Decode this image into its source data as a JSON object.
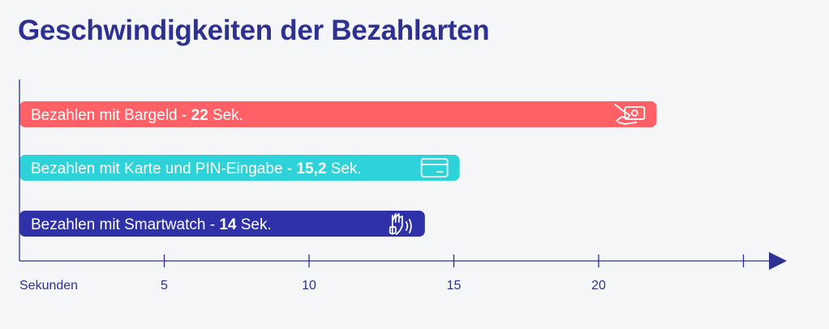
{
  "colors": {
    "title": "#2e3192",
    "axis": "#2e3192",
    "bar_cash": "#ff6166",
    "bar_card": "#2ed3d9",
    "bar_watch": "#2e31a8",
    "icon": "#ffffff"
  },
  "chart_data": {
    "type": "bar",
    "orientation": "horizontal",
    "title": "Geschwindigkeiten der Bezahlarten",
    "xlabel": "Sekunden",
    "xlim": [
      0,
      25
    ],
    "xticks": [
      5,
      10,
      15,
      20
    ],
    "xtick_labels": [
      "5",
      "10",
      "15",
      "20"
    ],
    "bars": [
      {
        "label": "Bezahlen mit Bargeld - ",
        "value": 22,
        "value_label": "22",
        "unit": " Sek.",
        "color": "#ff6166",
        "icon": "cash-hand-icon"
      },
      {
        "label": "Bezahlen mit Karte und PIN-Eingabe - ",
        "value": 15.2,
        "value_label": "15,2",
        "unit": " Sek.",
        "color": "#2ed3d9",
        "icon": "credit-card-icon"
      },
      {
        "label": "Bezahlen mit Smartwatch - ",
        "value": 14,
        "value_label": "14",
        "unit": " Sek.",
        "color": "#2e31a8",
        "icon": "contactless-hand-icon"
      }
    ]
  }
}
